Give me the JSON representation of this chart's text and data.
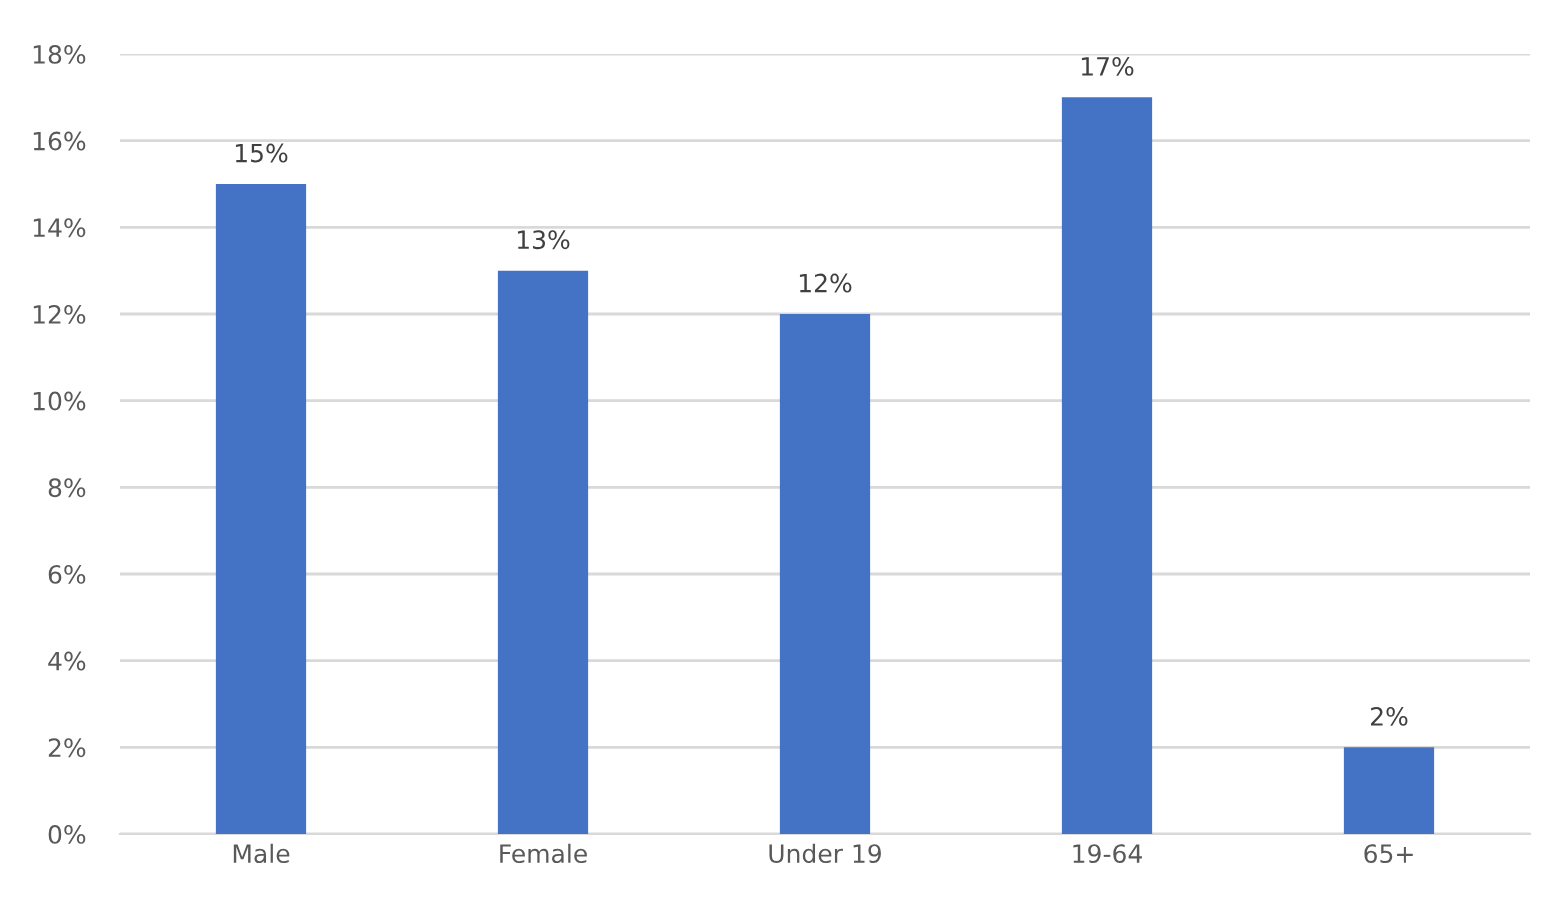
{
  "chart_data": {
    "type": "bar",
    "categories": [
      "Male",
      "Female",
      "Under 19",
      "19-64",
      "65+"
    ],
    "values": [
      15,
      13,
      12,
      17,
      2
    ],
    "value_labels": [
      "15%",
      "13%",
      "12%",
      "17%",
      "2%"
    ],
    "color": "#4472c4",
    "ylim": [
      0,
      18
    ],
    "yticks": [
      {
        "value": 0,
        "label": "0%"
      },
      {
        "value": 2,
        "label": "2%"
      },
      {
        "value": 4,
        "label": "4%"
      },
      {
        "value": 6,
        "label": "6%"
      },
      {
        "value": 8,
        "label": "8%"
      },
      {
        "value": 10,
        "label": "10%"
      },
      {
        "value": 12,
        "label": "12%"
      },
      {
        "value": 14,
        "label": "14%"
      },
      {
        "value": 16,
        "label": "16%"
      },
      {
        "value": 18,
        "label": "18%"
      }
    ],
    "grid": "y",
    "legend": false
  }
}
